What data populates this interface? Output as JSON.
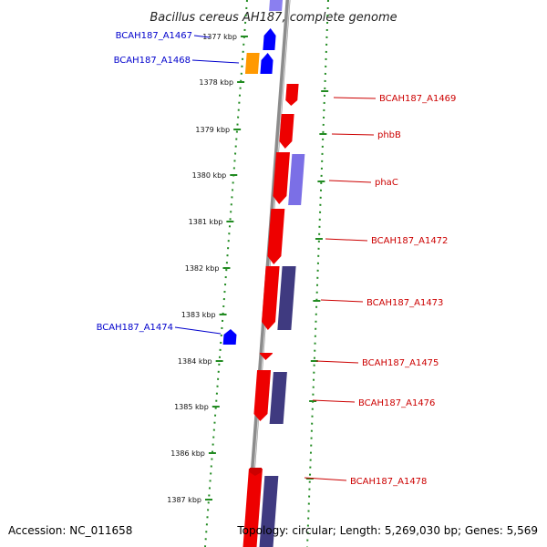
{
  "header": {
    "title": "Bacillus cereus AH187, complete genome"
  },
  "footer": {
    "accession": "Accession: NC_011658",
    "topology": "Topology: circular; Length: 5,269,030 bp; Genes: 5,569"
  },
  "colors": {
    "backbone": "#8c8c8c",
    "ruler_dots": "#228b22",
    "forward_gene": "#0000ff",
    "forward_light": "#8a7ff0",
    "orange_gene": "#ff9900",
    "reverse_gene": "#ee0000",
    "reverse_dark": "#3f3a80",
    "reverse_light": "#7b6fe6",
    "forward_label": "#0000cc",
    "reverse_label": "#cc0000"
  },
  "ruler": {
    "ticks": [
      "1377 kbp",
      "1378 kbp",
      "1379 kbp",
      "1380 kbp",
      "1381 kbp",
      "1382 kbp",
      "1383 kbp",
      "1384 kbp",
      "1385 kbp",
      "1386 kbp",
      "1387 kbp"
    ]
  },
  "gene_labels": {
    "left": [
      "BCAH187_A1467",
      "BCAH187_A1468",
      "BCAH187_A1474"
    ],
    "right": [
      "BCAH187_A1469",
      "phbB",
      "phaC",
      "BCAH187_A1472",
      "BCAH187_A1473",
      "BCAH187_A1475",
      "BCAH187_A1476",
      "BCAH187_A1478"
    ]
  }
}
